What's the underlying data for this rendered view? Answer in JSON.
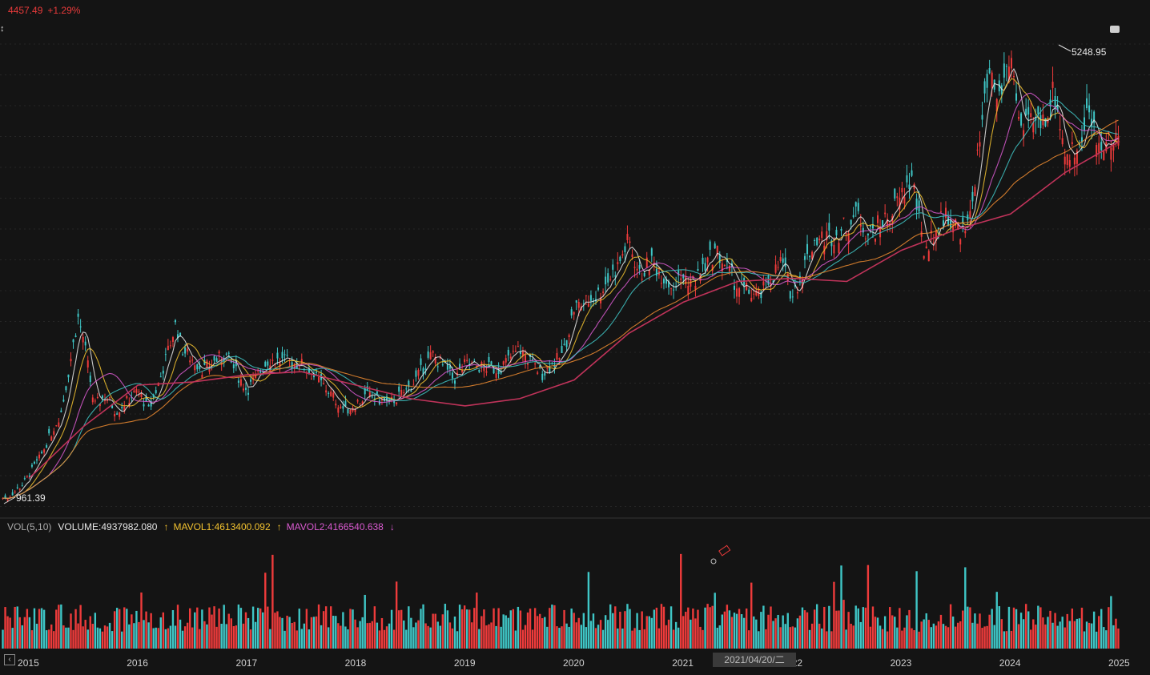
{
  "header": {
    "last_price": "4457.49",
    "change_pct": "+1.29%"
  },
  "colors": {
    "up": "#ee3b3b",
    "down": "#3fc6c6",
    "ma5": "#e8e8e8",
    "ma10": "#f2c230",
    "ma20": "#d95ad0",
    "ma60": "#f08c30",
    "ma120": "#c0335a",
    "background": "#141414"
  },
  "volume_legend": {
    "name": "VOL(5,10)",
    "volume": "VOLUME:4937982.080",
    "mavol1": "MAVOL1:4613400.092",
    "mavol2": "MAVOL2:4166540.638",
    "mavol1_arrow": "↑",
    "mavol2_arrow": "↓",
    "volume_arrow": "↑"
  },
  "cursor_date": "2021/04/20/二",
  "annotations": {
    "max_label": "5248.95",
    "min_label": "961.39"
  },
  "chart_data": {
    "type": "line",
    "x_tick_labels": [
      "2015",
      "2016",
      "2017",
      "2018",
      "2019",
      "2020",
      "2021",
      "2022",
      "2023",
      "2024",
      "2025"
    ],
    "ylim": [
      900,
      5300
    ],
    "price_series": {
      "name": "price",
      "x": [
        2014.8,
        2014.95,
        2015.1,
        2015.3,
        2015.45,
        2015.5,
        2015.6,
        2015.7,
        2015.8,
        2016.0,
        2016.1,
        2016.2,
        2016.35,
        2016.4,
        2016.6,
        2016.8,
        2017.0,
        2017.2,
        2017.5,
        2017.7,
        2017.9,
        2018.1,
        2018.3,
        2018.5,
        2018.7,
        2018.9,
        2019.0,
        2019.3,
        2019.5,
        2019.7,
        2019.9,
        2020.0,
        2020.2,
        2020.4,
        2020.5,
        2020.6,
        2020.7,
        2020.9,
        2021.0,
        2021.1,
        2021.3,
        2021.5,
        2021.7,
        2021.9,
        2022.0,
        2022.2,
        2022.4,
        2022.6,
        2022.7,
        2022.9,
        2023.1,
        2023.2,
        2023.4,
        2023.6,
        2023.8,
        2023.9,
        2024.0,
        2024.1,
        2024.3,
        2024.4,
        2024.5,
        2024.6,
        2024.7,
        2024.8,
        2024.9,
        2025.0
      ],
      "values": [
        961.39,
        1100,
        1350,
        1800,
        2700,
        2500,
        1850,
        1950,
        1800,
        2000,
        1800,
        2100,
        2650,
        2400,
        2200,
        2350,
        2000,
        2300,
        2250,
        2050,
        1800,
        1950,
        1870,
        2030,
        2350,
        2100,
        2250,
        2200,
        2400,
        2150,
        2350,
        2800,
        2900,
        3200,
        3450,
        3100,
        3250,
        3000,
        3100,
        3050,
        3350,
        3000,
        2900,
        3250,
        2900,
        3450,
        3500,
        3700,
        3500,
        3700,
        4050,
        3350,
        3700,
        3500,
        5000,
        4800,
        5248.95,
        4500,
        4600,
        4900,
        4300,
        4300,
        4700,
        4350,
        4400,
        4457.49
      ]
    },
    "ma_long_series": {
      "name": "ma",
      "x": [
        2015.0,
        2015.5,
        2016.0,
        2016.5,
        2017.0,
        2017.5,
        2018.0,
        2018.5,
        2019.0,
        2019.5,
        2020.0,
        2020.5,
        2021.0,
        2021.5,
        2022.0,
        2022.5,
        2023.0,
        2023.5,
        2024.0,
        2024.5,
        2025.0
      ],
      "values": [
        1150,
        1650,
        2050,
        2080,
        2150,
        2180,
        2050,
        1920,
        1850,
        1920,
        2100,
        2550,
        2850,
        3050,
        3080,
        3050,
        3350,
        3550,
        3700,
        4100,
        4400
      ]
    },
    "volume_max": 6000000
  }
}
